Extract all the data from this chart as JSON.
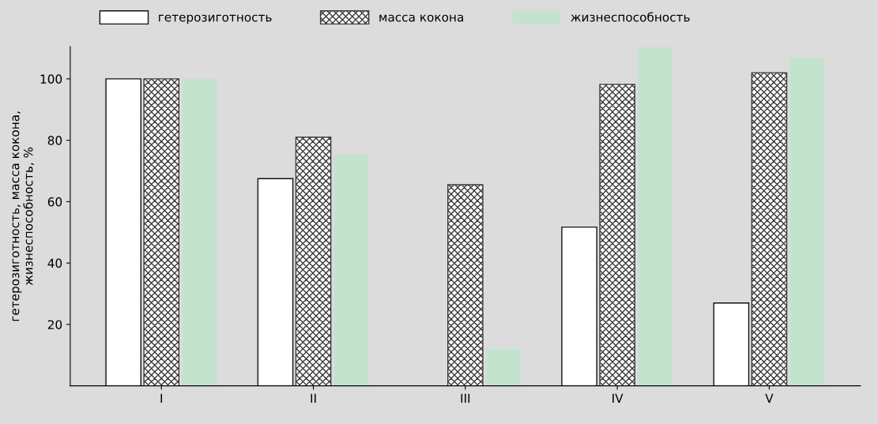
{
  "chart_data": {
    "type": "bar",
    "ylabel": "гетерозиготность, масса кокона,\nжизнеспособность, %",
    "categories": [
      "I",
      "II",
      "III",
      "IV",
      "V"
    ],
    "series": [
      {
        "name": "гетерозиготность",
        "color": "#ffffff",
        "values": [
          100,
          67.5,
          null,
          51.7,
          27
        ]
      },
      {
        "name": "масса кокона",
        "color": "#3a3a3a",
        "values": [
          100,
          81,
          65.5,
          98.2,
          102
        ]
      },
      {
        "name": "жизнеспособность",
        "color": "#c4e3cf",
        "values": [
          100,
          75.3,
          12,
          110.3,
          106.8
        ]
      }
    ],
    "ylim": [
      0,
      110.5
    ],
    "yticks": [
      20,
      40,
      60,
      80,
      100
    ],
    "grid": false,
    "legend": "top"
  }
}
